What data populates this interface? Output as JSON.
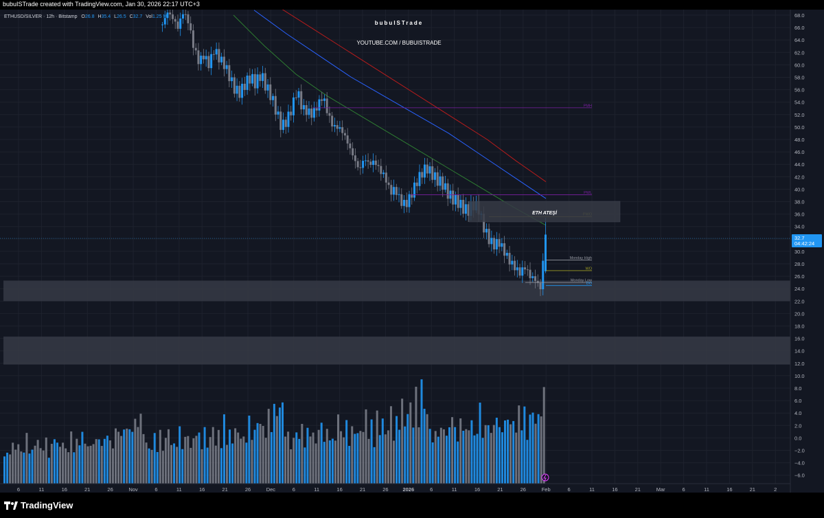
{
  "header": {
    "attribution": "bubuISTrade created with TradingView.com, Jan 30, 2026 22:17 UTC+3"
  },
  "legend": {
    "symbol": "ETHUSD/SILVER · 12h · Bitstamp",
    "o_label": "O",
    "o_value": "26.8",
    "h_label": "H",
    "h_value": "35.4",
    "l_label": "L",
    "l_value": "26.5",
    "c_label": "C",
    "c_value": "32.7",
    "vol_label": "Vol",
    "vol_value": "1.25 M"
  },
  "watermark": {
    "name": "bubuISTrade",
    "channel": "YOUTUBE.COM / BUBUISTRADE"
  },
  "price_axis": {
    "ticks": [
      "68.0",
      "66.0",
      "64.0",
      "62.0",
      "60.0",
      "58.0",
      "56.0",
      "54.0",
      "52.0",
      "50.0",
      "48.0",
      "46.0",
      "44.0",
      "42.0",
      "40.0",
      "38.0",
      "36.0",
      "34.0",
      "32.0",
      "30.0",
      "28.0",
      "26.0",
      "24.0",
      "22.0",
      "20.0",
      "18.0",
      "16.0",
      "14.0",
      "12.0",
      "10.0",
      "8.0",
      "6.0",
      "4.0",
      "2.0",
      "0.0",
      "−2.0",
      "−4.0",
      "−6.0"
    ],
    "current_price": "32.7",
    "countdown": "04:42:24"
  },
  "time_axis": {
    "labels": [
      "6",
      "11",
      "16",
      "21",
      "26",
      "Nov",
      "6",
      "11",
      "16",
      "21",
      "26",
      "Dec",
      "6",
      "11",
      "16",
      "21",
      "26",
      "2026",
      "6",
      "11",
      "16",
      "21",
      "26",
      "Feb",
      "6",
      "11",
      "16",
      "21",
      "Mar",
      "6",
      "11",
      "16",
      "21",
      "2"
    ]
  },
  "annotations": {
    "eth_fire": "ETH ATEŞİ",
    "pwo": "PWO",
    "pmh": "PMH",
    "pwh": "PWL",
    "monday_high": "Monday High",
    "wo": "WO",
    "monday_low": "Monday Low",
    "do": "DO"
  },
  "colors": {
    "background": "#131722",
    "up": "#2196f3",
    "down": "#787b86",
    "ma_fast": "#2e7d32",
    "ma_mid": "#2962ff",
    "ma_slow": "#b71c1c",
    "zone": "#363a45",
    "purple": "#7b1fa2",
    "olive": "#9e9d24",
    "price_tag": "#2196f3"
  },
  "chart_data": {
    "type": "candlestick",
    "timeframe": "12h",
    "ylim": [
      -7,
      69
    ],
    "price_path": [
      66.5,
      68.5,
      67.5,
      66,
      68.5,
      67,
      63,
      60.5,
      61.5,
      60,
      62.5,
      61,
      60,
      58,
      56,
      55.5,
      57,
      58,
      57,
      58.5,
      56.5,
      55,
      52.5,
      50,
      51,
      53,
      56,
      53,
      52.5,
      52,
      53.5,
      55,
      52,
      50,
      50,
      49,
      47,
      45,
      43,
      45,
      44,
      44.5,
      43,
      42,
      39.5,
      40,
      38,
      37.5,
      39,
      41,
      42.5,
      43.5,
      42.5,
      41.5,
      41,
      39.5,
      38.5,
      38,
      37,
      36.5,
      37.5,
      37,
      34,
      32,
      31,
      31.5,
      30,
      28.5,
      27.5,
      26.5,
      27.5,
      26,
      25.5,
      24,
      32.7
    ],
    "moving_averages": [
      {
        "name": "slow",
        "color": "#b71c1c",
        "y": [
          69,
          66,
          63,
          60,
          57,
          54,
          51,
          48,
          44.5,
          41.2
        ]
      },
      {
        "name": "mid",
        "color": "#2962ff",
        "y": [
          68.8,
          65,
          61.5,
          58,
          55,
          52,
          49,
          45.5,
          42,
          38.5
        ]
      },
      {
        "name": "fast",
        "color": "#2e7d32",
        "y": [
          68,
          63,
          58.5,
          55,
          52,
          49,
          46,
          43,
          40,
          37,
          34.2
        ]
      }
    ],
    "zones": [
      {
        "from": 22,
        "to": 25.3
      },
      {
        "from": 11.8,
        "to": 16.3
      }
    ],
    "labeled_levels": [
      {
        "label": "PMH",
        "y": 53.1
      },
      {
        "label": "PWL",
        "y": 39.1
      },
      {
        "label": "PWO",
        "y": 35.6
      },
      {
        "label": "Monday High",
        "y": 28.6
      },
      {
        "label": "WO",
        "y": 26.9
      },
      {
        "label": "Monday Low",
        "y": 25.0
      },
      {
        "label": "DO",
        "y": 24.5
      }
    ],
    "volume_relative": [
      0.42,
      0.28,
      0.35,
      0.5,
      0.38,
      0.55,
      0.3,
      0.46,
      0.62,
      0.4,
      0.33,
      0.48,
      0.58,
      0.36,
      0.44,
      0.52,
      0.3,
      0.41,
      0.66,
      0.47,
      0.39,
      0.56,
      0.32,
      0.45,
      0.6,
      0.37,
      0.5,
      0.43,
      0.72,
      0.4,
      0.53,
      0.34,
      0.64,
      0.46,
      0.58,
      0.38,
      0.49,
      0.7,
      0.42,
      0.55,
      0.61,
      0.8,
      0.52,
      0.68,
      0.76,
      0.6,
      0.9,
      0.74,
      1.0,
      0.85,
      0.62
    ]
  }
}
